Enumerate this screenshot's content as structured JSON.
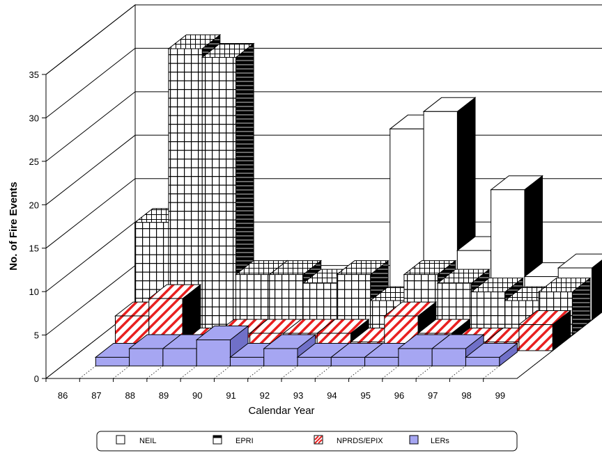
{
  "chart_data": {
    "type": "bar",
    "style": "3d-stacked",
    "title": "",
    "xlabel": "Calendar Year",
    "ylabel": "No. of Fire Events",
    "ylim": [
      0,
      35
    ],
    "yticks": [
      0,
      5,
      10,
      15,
      20,
      25,
      30,
      35
    ],
    "grid": true,
    "legend_position": "bottom",
    "categories": [
      "86",
      "87",
      "88",
      "89",
      "90",
      "91",
      "92",
      "93",
      "94",
      "95",
      "96",
      "97",
      "98",
      "99"
    ],
    "rows": [
      {
        "name": "LERs",
        "values": [
          0,
          1,
          2,
          2,
          3,
          1,
          2,
          1,
          1,
          1,
          2,
          2,
          1,
          0
        ],
        "color": "#a6a6f2"
      },
      {
        "name": "NPRDS/EPIX",
        "values": [
          0,
          4,
          6,
          1,
          2,
          2,
          2,
          2,
          1,
          4,
          2,
          1,
          1,
          3
        ],
        "color": "#e82020"
      },
      {
        "name": "EPRI",
        "values": [
          0,
          13,
          33,
          32,
          7,
          7,
          6,
          7,
          4,
          7,
          6,
          5,
          4,
          5
        ],
        "color": "#000000"
      },
      {
        "name": "NEIL",
        "values": [
          0,
          0,
          0,
          0,
          0,
          0,
          0,
          0,
          22,
          24,
          8,
          15,
          5,
          6
        ],
        "color": "#ffffff"
      }
    ]
  },
  "legend": {
    "items": [
      {
        "label": "NEIL",
        "swatch": "neil"
      },
      {
        "label": "EPRI",
        "swatch": "epri"
      },
      {
        "label": "NPRDS/EPIX",
        "swatch": "nprds"
      },
      {
        "label": "LERs",
        "swatch": "lers"
      }
    ]
  }
}
